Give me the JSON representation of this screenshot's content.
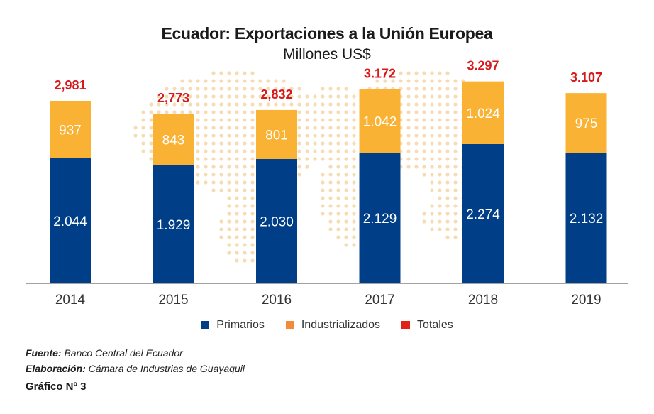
{
  "chart_data": {
    "type": "bar",
    "stacked": true,
    "title": "Ecuador: Exportaciones a la Unión Europea",
    "subtitle": "Millones US$",
    "categories": [
      "2014",
      "2015",
      "2016",
      "2017",
      "2018",
      "2019"
    ],
    "series": [
      {
        "name": "Primarios",
        "color": "#003f87",
        "values": [
          2044,
          1929,
          2030,
          2129,
          2274,
          2132
        ],
        "labels": [
          "2.044",
          "1.929",
          "2.030",
          "2.129",
          "2.274",
          "2.132"
        ]
      },
      {
        "name": "Industrializados",
        "color": "#f9b233",
        "values": [
          937,
          843,
          801,
          1042,
          1024,
          975
        ],
        "labels": [
          "937",
          "843",
          "801",
          "1.042",
          "1.024",
          "975"
        ]
      }
    ],
    "totals": {
      "name": "Totales",
      "color": "#d7191c",
      "values": [
        2981,
        2773,
        2832,
        3172,
        3297,
        3107
      ],
      "labels": [
        "2,981",
        "2,773",
        "2,832",
        "3.172",
        "3.297",
        "3.107"
      ]
    },
    "legend_swatch_colors": [
      "#003f87",
      "#f28c38",
      "#e2231a"
    ],
    "ylim": [
      0,
      3700
    ],
    "legend_position": "bottom",
    "grid": false,
    "background_map_color": "#f6dcb3"
  },
  "footer": {
    "source_label": "Fuente:",
    "source_value": " Banco Central del Ecuador",
    "made_label": "Elaboración:",
    "made_value": " Cámara de Industrias de Guayaquil",
    "chart_number": "Gráfico Nº 3"
  }
}
